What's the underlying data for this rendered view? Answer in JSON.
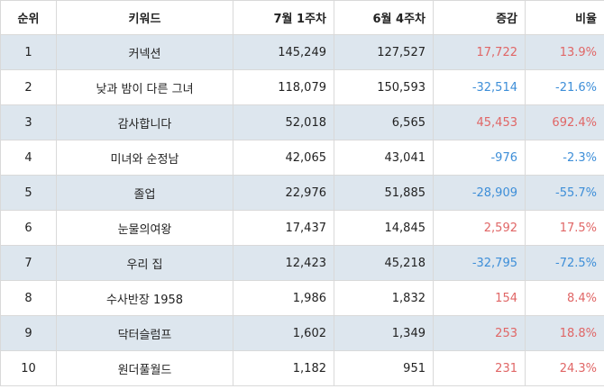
{
  "headers": {
    "rank": "순위",
    "keyword": "키워드",
    "week_jul1": "7월 1주차",
    "week_jun4": "6월 4주차",
    "change": "증감",
    "ratio": "비율"
  },
  "colors": {
    "increase": "#e06666",
    "decrease": "#3d8ed8",
    "stripe": "#dde6ee"
  },
  "rows": [
    {
      "rank": "1",
      "keyword": "커넥션",
      "week_jul1": "145,249",
      "week_jun4": "127,527",
      "change": "17,722",
      "ratio": "13.9%",
      "trend": "pos"
    },
    {
      "rank": "2",
      "keyword": "낮과 밤이 다른 그녀",
      "week_jul1": "118,079",
      "week_jun4": "150,593",
      "change": "-32,514",
      "ratio": "-21.6%",
      "trend": "neg"
    },
    {
      "rank": "3",
      "keyword": "감사합니다",
      "week_jul1": "52,018",
      "week_jun4": "6,565",
      "change": "45,453",
      "ratio": "692.4%",
      "trend": "pos"
    },
    {
      "rank": "4",
      "keyword": "미녀와 순정남",
      "week_jul1": "42,065",
      "week_jun4": "43,041",
      "change": "-976",
      "ratio": "-2.3%",
      "trend": "neg"
    },
    {
      "rank": "5",
      "keyword": "졸업",
      "week_jul1": "22,976",
      "week_jun4": "51,885",
      "change": "-28,909",
      "ratio": "-55.7%",
      "trend": "neg"
    },
    {
      "rank": "6",
      "keyword": "눈물의여왕",
      "week_jul1": "17,437",
      "week_jun4": "14,845",
      "change": "2,592",
      "ratio": "17.5%",
      "trend": "pos"
    },
    {
      "rank": "7",
      "keyword": "우리 집",
      "week_jul1": "12,423",
      "week_jun4": "45,218",
      "change": "-32,795",
      "ratio": "-72.5%",
      "trend": "neg"
    },
    {
      "rank": "8",
      "keyword": "수사반장 1958",
      "week_jul1": "1,986",
      "week_jun4": "1,832",
      "change": "154",
      "ratio": "8.4%",
      "trend": "pos"
    },
    {
      "rank": "9",
      "keyword": "닥터슬럼프",
      "week_jul1": "1,602",
      "week_jun4": "1,349",
      "change": "253",
      "ratio": "18.8%",
      "trend": "pos"
    },
    {
      "rank": "10",
      "keyword": "원더풀월드",
      "week_jul1": "1,182",
      "week_jun4": "951",
      "change": "231",
      "ratio": "24.3%",
      "trend": "pos"
    }
  ]
}
